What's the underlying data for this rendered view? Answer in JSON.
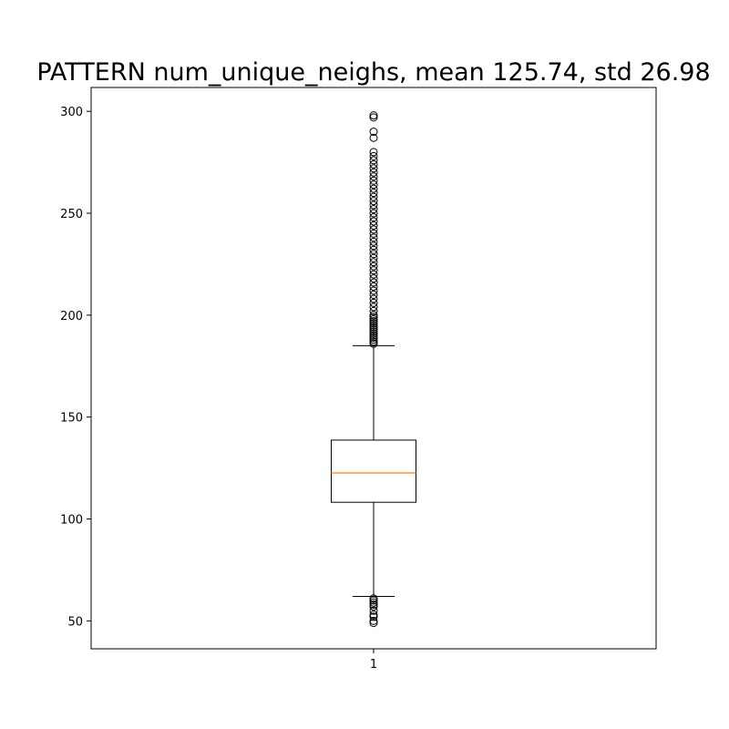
{
  "chart_data": {
    "type": "box",
    "title": "PATTERN num_unique_neighs, mean 125.74, std 26.98",
    "xlabel": "",
    "ylabel": "",
    "categories": [
      "1"
    ],
    "ylim": [
      36.3,
      311.7
    ],
    "yticks": [
      50,
      100,
      150,
      200,
      250,
      300
    ],
    "grid": false,
    "box": {
      "q1": 108.2,
      "median": 122.6,
      "q3": 138.7,
      "whisker_low": 62,
      "whisker_high": 185
    },
    "outliers_high": [
      186,
      187,
      188,
      189,
      190,
      191,
      192,
      193,
      194,
      195,
      196,
      197,
      198,
      199,
      200,
      202,
      204,
      206,
      208,
      210,
      212,
      214,
      216,
      218,
      220,
      222,
      224,
      226,
      228,
      230,
      232,
      234,
      236,
      238,
      240,
      242,
      244,
      246,
      248,
      250,
      252,
      254,
      256,
      258,
      260,
      262,
      264,
      266,
      268,
      270,
      272,
      274,
      276,
      278,
      280,
      287,
      290,
      297,
      298
    ],
    "outliers_low": [
      49,
      50,
      52,
      53,
      55,
      57,
      58,
      59,
      60,
      61
    ],
    "colors": {
      "box": "#000000",
      "median": "#ff7f0e",
      "outlier": "#000000"
    }
  }
}
